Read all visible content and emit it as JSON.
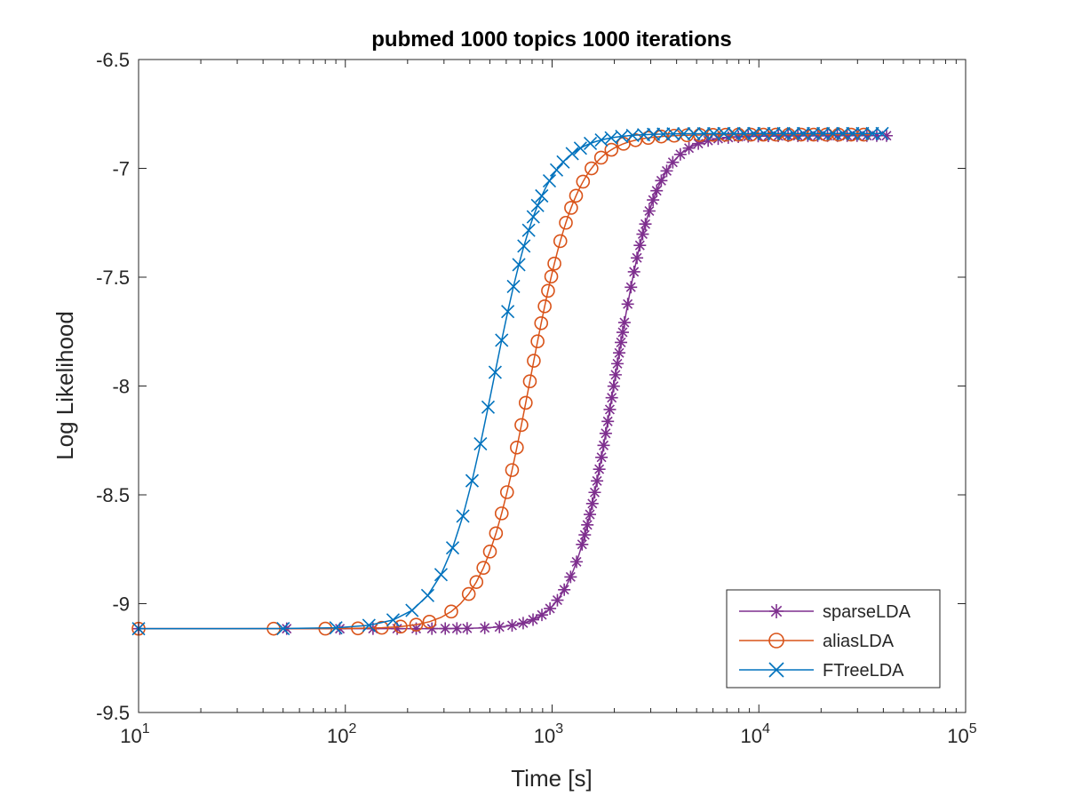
{
  "chart_data": {
    "type": "line",
    "title": "pubmed 1000 topics 1000 iterations",
    "xlabel": "Time [s]",
    "ylabel": "Log Likelihood",
    "xscale": "log",
    "xlim": [
      10,
      100000
    ],
    "ylim": [
      -9.5,
      -6.5
    ],
    "x_ticks": [
      {
        "value": 10,
        "base": "10",
        "exp": "1"
      },
      {
        "value": 100,
        "base": "10",
        "exp": "2"
      },
      {
        "value": 1000,
        "base": "10",
        "exp": "3"
      },
      {
        "value": 10000,
        "base": "10",
        "exp": "4"
      },
      {
        "value": 100000,
        "base": "10",
        "exp": "5"
      }
    ],
    "y_ticks": [
      {
        "value": -6.5,
        "label": "-6.5"
      },
      {
        "value": -7,
        "label": "-7"
      },
      {
        "value": -7.5,
        "label": "-7.5"
      },
      {
        "value": -8,
        "label": "-8"
      },
      {
        "value": -8.5,
        "label": "-8.5"
      },
      {
        "value": -9,
        "label": "-9"
      },
      {
        "value": -9.5,
        "label": "-9.5"
      }
    ],
    "legend_position": "bottom-right",
    "series": [
      {
        "name": "sparseLDA",
        "color": "#7E2F8E",
        "marker": "asterisk",
        "curve": {
          "type": "logistic",
          "x_start": 10,
          "x_end": 42000,
          "y_low": -9.115,
          "y_high": -6.85,
          "x_mid": 2000,
          "steepness": 4.4,
          "n_points": 1000
        }
      },
      {
        "name": "aliasLDA",
        "color": "#D95319",
        "marker": "circle",
        "curve": {
          "type": "logistic",
          "x_start": 10,
          "x_end": 35000,
          "y_low": -9.115,
          "y_high": -6.845,
          "x_mid": 780,
          "steepness": 3.8,
          "n_points": 1000
        }
      },
      {
        "name": "FTreeLDA",
        "color": "#0072BD",
        "marker": "x",
        "curve": {
          "type": "logistic",
          "x_start": 10,
          "x_end": 40000,
          "y_low": -9.115,
          "y_high": -6.84,
          "x_mid": 520,
          "steepness": 3.6,
          "n_points": 1000
        }
      }
    ]
  }
}
